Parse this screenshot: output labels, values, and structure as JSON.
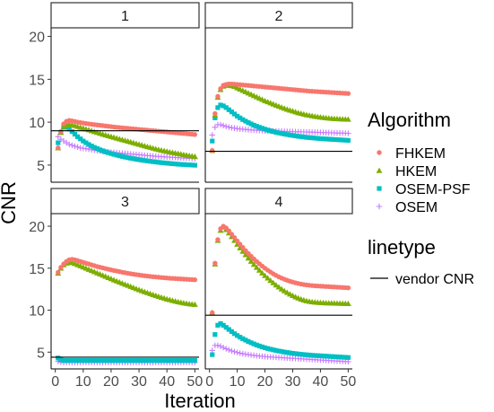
{
  "chart_data": {
    "type": "scatter",
    "facet_labels": [
      "1",
      "2",
      "3",
      "4"
    ],
    "xlabel": "Iteration",
    "ylabel": "CNR",
    "x_ticks": [
      0,
      10,
      20,
      30,
      40,
      50
    ],
    "x_tick_labels": [
      "0",
      "10",
      "20",
      "30",
      "40",
      "50"
    ],
    "y_ticks": [
      5,
      10,
      15,
      20
    ],
    "y_tick_labels": [
      "5",
      "10",
      "15",
      "20"
    ],
    "xlim": [
      -1.5,
      51.5
    ],
    "ylim_top_row": [
      3.0,
      21.0
    ],
    "ylim_bottom_row": [
      3.0,
      21.5
    ],
    "grid": false,
    "legend_placement": "right",
    "legend": {
      "algorithm_title": "Algorithm",
      "algorithm_items": [
        {
          "label": "FHKEM",
          "color": "#F8766D",
          "shape": "circle"
        },
        {
          "label": "HKEM",
          "color": "#7CAE00",
          "shape": "triangle"
        },
        {
          "label": "OSEM-PSF",
          "color": "#00BFC4",
          "shape": "square"
        },
        {
          "label": "OSEM",
          "color": "#C77CFF",
          "shape": "plus"
        }
      ],
      "linetype_title": "linetype",
      "linetype_items": [
        {
          "label": "vendor CNR",
          "color": "#000000",
          "shape": "line"
        }
      ]
    },
    "x": [
      1,
      2,
      3,
      4,
      5,
      6,
      7,
      8,
      9,
      10,
      11,
      12,
      13,
      14,
      15,
      16,
      17,
      18,
      19,
      20,
      21,
      22,
      23,
      24,
      25,
      26,
      27,
      28,
      29,
      30,
      31,
      32,
      33,
      34,
      35,
      36,
      37,
      38,
      39,
      40,
      41,
      42,
      43,
      44,
      45,
      46,
      47,
      48,
      49,
      50
    ],
    "panels": [
      {
        "facet": "1",
        "vendor_cnr": 9.0,
        "series": [
          {
            "name": "FHKEM",
            "values": [
              7.0,
              8.9,
              9.8,
              10.1,
              10.2,
              10.15,
              10.08,
              10.0,
              9.95,
              9.9,
              9.85,
              9.8,
              9.76,
              9.72,
              9.68,
              9.64,
              9.6,
              9.56,
              9.52,
              9.48,
              9.44,
              9.4,
              9.37,
              9.34,
              9.31,
              9.28,
              9.25,
              9.22,
              9.19,
              9.16,
              9.13,
              9.1,
              9.07,
              9.04,
              9.01,
              8.98,
              8.95,
              8.92,
              8.89,
              8.86,
              8.83,
              8.8,
              8.77,
              8.74,
              8.71,
              8.68,
              8.65,
              8.62,
              8.59,
              8.56
            ]
          },
          {
            "name": "HKEM",
            "values": [
              7.0,
              8.8,
              9.5,
              9.7,
              9.75,
              9.7,
              9.6,
              9.5,
              9.4,
              9.3,
              9.2,
              9.1,
              9.0,
              8.9,
              8.8,
              8.7,
              8.6,
              8.5,
              8.41,
              8.32,
              8.23,
              8.14,
              8.05,
              7.96,
              7.87,
              7.78,
              7.69,
              7.6,
              7.51,
              7.42,
              7.33,
              7.24,
              7.15,
              7.06,
              6.97,
              6.88,
              6.8,
              6.73,
              6.66,
              6.59,
              6.52,
              6.46,
              6.4,
              6.34,
              6.28,
              6.22,
              6.16,
              6.1,
              6.04,
              6.0
            ]
          },
          {
            "name": "OSEM-PSF",
            "values": [
              7.6,
              8.8,
              9.4,
              9.4,
              9.2,
              8.9,
              8.6,
              8.3,
              8.05,
              7.8,
              7.6,
              7.4,
              7.22,
              7.06,
              6.92,
              6.78,
              6.66,
              6.54,
              6.44,
              6.34,
              6.25,
              6.16,
              6.08,
              6.0,
              5.93,
              5.86,
              5.8,
              5.74,
              5.68,
              5.63,
              5.58,
              5.53,
              5.48,
              5.44,
              5.4,
              5.36,
              5.32,
              5.28,
              5.25,
              5.22,
              5.19,
              5.16,
              5.13,
              5.1,
              5.08,
              5.06,
              5.04,
              5.02,
              5.0,
              4.98
            ]
          },
          {
            "name": "OSEM",
            "values": [
              8.3,
              8.0,
              7.8,
              7.6,
              7.4,
              7.3,
              7.2,
              7.1,
              7.0,
              6.95,
              6.9,
              6.85,
              6.8,
              6.75,
              6.7,
              6.66,
              6.62,
              6.58,
              6.54,
              6.5,
              6.47,
              6.44,
              6.41,
              6.38,
              6.35,
              6.32,
              6.29,
              6.26,
              6.23,
              6.2,
              6.17,
              6.14,
              6.11,
              6.08,
              6.05,
              6.02,
              6.0,
              5.98,
              5.96,
              5.94,
              5.92,
              5.9,
              5.88,
              5.86,
              5.84,
              5.82,
              5.8,
              5.78,
              5.76,
              5.74
            ]
          }
        ]
      },
      {
        "facet": "2",
        "vendor_cnr": 6.6,
        "series": [
          {
            "name": "FHKEM",
            "values": [
              6.7,
              11.0,
              13.0,
              13.9,
              14.3,
              14.4,
              14.45,
              14.45,
              14.42,
              14.4,
              14.37,
              14.34,
              14.31,
              14.28,
              14.25,
              14.22,
              14.19,
              14.16,
              14.13,
              14.1,
              14.07,
              14.04,
              14.01,
              13.98,
              13.95,
              13.92,
              13.89,
              13.86,
              13.83,
              13.8,
              13.77,
              13.74,
              13.71,
              13.68,
              13.65,
              13.62,
              13.6,
              13.58,
              13.56,
              13.54,
              13.52,
              13.5,
              13.48,
              13.46,
              13.44,
              13.42,
              13.4,
              13.38,
              13.36,
              13.34
            ]
          },
          {
            "name": "HKEM",
            "values": [
              6.7,
              10.8,
              12.9,
              13.8,
              14.2,
              14.3,
              14.3,
              14.25,
              14.15,
              14.0,
              13.85,
              13.7,
              13.55,
              13.4,
              13.25,
              13.1,
              12.95,
              12.8,
              12.65,
              12.5,
              12.37,
              12.24,
              12.11,
              11.98,
              11.86,
              11.74,
              11.62,
              11.5,
              11.4,
              11.3,
              11.2,
              11.1,
              11.02,
              10.94,
              10.86,
              10.8,
              10.74,
              10.68,
              10.63,
              10.58,
              10.54,
              10.5,
              10.47,
              10.44,
              10.42,
              10.4,
              10.38,
              10.36,
              10.35,
              10.34
            ]
          },
          {
            "name": "OSEM-PSF",
            "values": [
              7.8,
              10.5,
              11.7,
              12.0,
              11.9,
              11.7,
              11.45,
              11.2,
              10.95,
              10.7,
              10.5,
              10.3,
              10.12,
              9.95,
              9.8,
              9.65,
              9.52,
              9.4,
              9.29,
              9.18,
              9.08,
              8.99,
              8.9,
              8.82,
              8.75,
              8.68,
              8.62,
              8.56,
              8.5,
              8.45,
              8.4,
              8.35,
              8.31,
              8.27,
              8.23,
              8.2,
              8.17,
              8.14,
              8.11,
              8.08,
              8.06,
              8.04,
              8.02,
              8.0,
              7.98,
              7.96,
              7.94,
              7.92,
              7.9,
              7.88
            ]
          },
          {
            "name": "OSEM",
            "values": [
              8.5,
              9.4,
              9.7,
              9.7,
              9.6,
              9.5,
              9.42,
              9.35,
              9.3,
              9.25,
              9.21,
              9.18,
              9.15,
              9.12,
              9.1,
              9.08,
              9.06,
              9.04,
              9.02,
              9.0,
              8.99,
              8.98,
              8.97,
              8.96,
              8.95,
              8.94,
              8.93,
              8.92,
              8.91,
              8.9,
              8.89,
              8.88,
              8.87,
              8.86,
              8.85,
              8.84,
              8.83,
              8.82,
              8.81,
              8.8,
              8.79,
              8.78,
              8.77,
              8.76,
              8.75,
              8.74,
              8.73,
              8.72,
              8.71,
              8.7
            ]
          }
        ]
      },
      {
        "facet": "3",
        "vendor_cnr": 4.4,
        "series": [
          {
            "name": "FHKEM",
            "values": [
              14.5,
              15.1,
              15.5,
              15.8,
              16.0,
              16.05,
              16.0,
              15.9,
              15.8,
              15.7,
              15.6,
              15.5,
              15.4,
              15.3,
              15.2,
              15.12,
              15.04,
              14.96,
              14.88,
              14.8,
              14.73,
              14.66,
              14.59,
              14.52,
              14.46,
              14.4,
              14.34,
              14.29,
              14.24,
              14.19,
              14.14,
              14.1,
              14.06,
              14.02,
              13.98,
              13.95,
              13.92,
              13.89,
              13.86,
              13.83,
              13.8,
              13.78,
              13.76,
              13.74,
              13.72,
              13.7,
              13.68,
              13.66,
              13.64,
              13.62
            ]
          },
          {
            "name": "HKEM",
            "values": [
              14.4,
              15.0,
              15.4,
              15.6,
              15.7,
              15.65,
              15.55,
              15.42,
              15.28,
              15.14,
              15.0,
              14.86,
              14.72,
              14.58,
              14.44,
              14.3,
              14.16,
              14.02,
              13.88,
              13.74,
              13.6,
              13.47,
              13.34,
              13.21,
              13.08,
              12.95,
              12.82,
              12.69,
              12.56,
              12.44,
              12.32,
              12.2,
              12.08,
              11.96,
              11.85,
              11.74,
              11.63,
              11.53,
              11.43,
              11.33,
              11.24,
              11.15,
              11.07,
              10.99,
              10.92,
              10.86,
              10.8,
              10.75,
              10.71,
              10.68
            ]
          },
          {
            "name": "OSEM-PSF",
            "values": [
              4.3,
              4.1,
              4.0,
              4.0,
              4.0,
              4.0,
              4.0,
              4.0,
              4.0,
              4.0,
              4.0,
              4.0,
              4.0,
              4.0,
              4.0,
              4.0,
              4.0,
              4.0,
              4.0,
              4.0,
              4.0,
              4.0,
              4.0,
              4.0,
              4.0,
              4.0,
              4.0,
              4.0,
              4.0,
              4.0,
              4.0,
              4.0,
              4.0,
              4.0,
              4.0,
              4.0,
              4.0,
              4.0,
              4.0,
              4.0,
              4.0,
              4.0,
              4.0,
              4.0,
              4.0,
              4.0,
              4.0,
              4.0,
              4.0,
              4.0
            ]
          },
          {
            "name": "OSEM",
            "values": [
              3.9,
              3.8,
              3.75,
              3.75,
              3.75,
              3.75,
              3.75,
              3.75,
              3.75,
              3.75,
              3.75,
              3.75,
              3.75,
              3.75,
              3.75,
              3.75,
              3.75,
              3.75,
              3.75,
              3.75,
              3.75,
              3.75,
              3.75,
              3.75,
              3.75,
              3.75,
              3.75,
              3.75,
              3.75,
              3.75,
              3.75,
              3.75,
              3.75,
              3.75,
              3.75,
              3.75,
              3.75,
              3.75,
              3.75,
              3.75,
              3.75,
              3.75,
              3.75,
              3.75,
              3.75,
              3.75,
              3.75,
              3.75,
              3.75,
              3.75
            ]
          }
        ]
      },
      {
        "facet": "4",
        "vendor_cnr": 9.4,
        "series": [
          {
            "name": "FHKEM",
            "values": [
              9.7,
              15.6,
              18.4,
              19.7,
              20.0,
              19.8,
              19.45,
              19.05,
              18.65,
              18.25,
              17.85,
              17.47,
              17.1,
              16.75,
              16.42,
              16.1,
              15.8,
              15.52,
              15.25,
              15.0,
              14.76,
              14.54,
              14.33,
              14.14,
              13.97,
              13.82,
              13.68,
              13.56,
              13.45,
              13.35,
              13.26,
              13.18,
              13.11,
              13.05,
              13.0,
              12.96,
              12.93,
              12.9,
              12.88,
              12.86,
              12.84,
              12.82,
              12.8,
              12.78,
              12.76,
              12.74,
              12.72,
              12.7,
              12.68,
              12.66
            ]
          },
          {
            "name": "HKEM",
            "values": [
              9.7,
              15.5,
              18.3,
              19.5,
              19.9,
              19.6,
              19.2,
              18.75,
              18.3,
              17.85,
              17.42,
              17.0,
              16.6,
              16.2,
              15.82,
              15.45,
              15.1,
              14.76,
              14.43,
              14.12,
              13.82,
              13.53,
              13.26,
              13.0,
              12.75,
              12.52,
              12.3,
              12.1,
              11.91,
              11.74,
              11.58,
              11.44,
              11.31,
              11.2,
              11.11,
              11.04,
              10.99,
              10.95,
              10.92,
              10.9,
              10.88,
              10.86,
              10.85,
              10.84,
              10.83,
              10.82,
              10.81,
              10.8,
              10.79,
              10.78
            ]
          },
          {
            "name": "OSEM-PSF",
            "values": [
              4.7,
              7.1,
              8.2,
              8.4,
              8.2,
              7.95,
              7.7,
              7.45,
              7.2,
              6.98,
              6.78,
              6.6,
              6.43,
              6.27,
              6.12,
              5.98,
              5.85,
              5.73,
              5.62,
              5.52,
              5.43,
              5.35,
              5.27,
              5.2,
              5.13,
              5.07,
              5.01,
              4.96,
              4.91,
              4.86,
              4.82,
              4.78,
              4.74,
              4.71,
              4.68,
              4.65,
              4.62,
              4.6,
              4.58,
              4.56,
              4.54,
              4.52,
              4.5,
              4.48,
              4.46,
              4.44,
              4.42,
              4.4,
              4.38,
              4.36
            ]
          },
          {
            "name": "OSEM",
            "values": [
              5.2,
              5.8,
              5.8,
              5.7,
              5.55,
              5.4,
              5.27,
              5.15,
              5.05,
              4.96,
              4.88,
              4.81,
              4.75,
              4.7,
              4.65,
              4.61,
              4.57,
              4.53,
              4.5,
              4.47,
              4.44,
              4.42,
              4.4,
              4.38,
              4.36,
              4.34,
              4.32,
              4.3,
              4.28,
              4.26,
              4.24,
              4.22,
              4.2,
              4.18,
              4.16,
              4.14,
              4.12,
              4.1,
              4.08,
              4.06,
              4.04,
              4.02,
              4.0,
              3.98,
              3.96,
              3.94,
              3.92,
              3.9,
              3.88,
              3.86
            ]
          }
        ]
      }
    ]
  }
}
